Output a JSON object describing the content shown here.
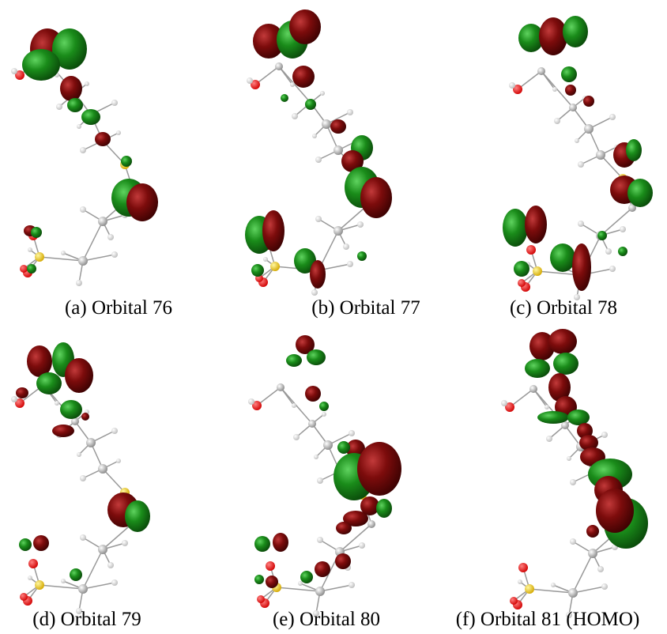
{
  "panels": [
    {
      "caption": "(a) Orbital 76"
    },
    {
      "caption": "(b) Orbital 77"
    },
    {
      "caption": "(c) Orbital 78"
    },
    {
      "caption": "(d) Orbital 79"
    },
    {
      "caption": "(e) Orbital 80"
    },
    {
      "caption": "(f) Orbital 81 (HOMO)"
    }
  ]
}
